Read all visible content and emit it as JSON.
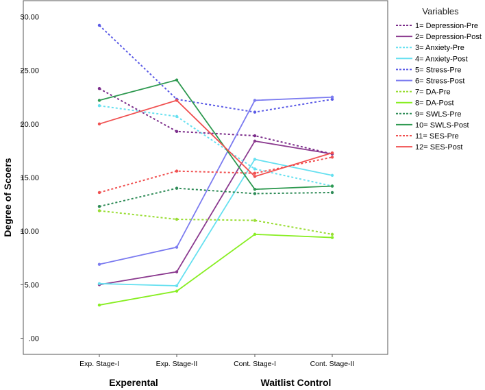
{
  "chart_data": {
    "type": "line",
    "ylabel": "Degree of Scoers",
    "categories": [
      "Exp. Stage-I",
      "Exp. Stage-II",
      "Cont. Stage-I",
      "Cont. Stage-II"
    ],
    "category_groups": [
      "Experental",
      "Waitlist Control"
    ],
    "ylim": [
      -1.5,
      31.5
    ],
    "yticks": [
      ".00",
      "5.00",
      "10.00",
      "15.00",
      "20.00",
      "25.00",
      "30.00"
    ],
    "ytick_values": [
      0,
      5,
      10,
      15,
      20,
      25,
      30
    ],
    "grid": false,
    "legend_title": "Variables",
    "legend_position": "right",
    "series": [
      {
        "name": "1= Depression-Pre",
        "values": [
          23.3,
          19.3,
          18.9,
          17.2
        ],
        "color": "#7b2c8a",
        "dashed": true
      },
      {
        "name": "2= Depression-Post",
        "values": [
          5.0,
          6.2,
          18.4,
          17.2
        ],
        "color": "#8b3a8f",
        "dashed": false
      },
      {
        "name": "3= Anxiety-Pre",
        "values": [
          21.7,
          20.7,
          15.8,
          14.2
        ],
        "color": "#66e0f0",
        "dashed": true
      },
      {
        "name": "4= Anxiety-Post",
        "values": [
          5.1,
          4.9,
          16.7,
          15.2
        ],
        "color": "#66e0f0",
        "dashed": false
      },
      {
        "name": "5= Stress-Pre",
        "values": [
          29.2,
          22.3,
          21.1,
          22.3
        ],
        "color": "#5a5ae6",
        "dashed": true
      },
      {
        "name": "6= Stress-Post",
        "values": [
          6.9,
          8.5,
          22.2,
          22.5
        ],
        "color": "#7b7bf0",
        "dashed": false
      },
      {
        "name": "7= DA-Pre",
        "values": [
          11.9,
          11.1,
          11.0,
          9.7
        ],
        "color": "#99dd33",
        "dashed": true
      },
      {
        "name": "8= DA-Post",
        "values": [
          3.1,
          4.4,
          9.7,
          9.4
        ],
        "color": "#88ee22",
        "dashed": false
      },
      {
        "name": "9= SWLS-Pre",
        "values": [
          12.3,
          14.0,
          13.5,
          13.6
        ],
        "color": "#2e8b57",
        "dashed": true
      },
      {
        "name": "10= SWLS-Post",
        "values": [
          22.2,
          24.1,
          13.9,
          14.2
        ],
        "color": "#2e9950",
        "dashed": false
      },
      {
        "name": "11= SES-Pre",
        "values": [
          13.6,
          15.6,
          15.4,
          16.9
        ],
        "color": "#f05050",
        "dashed": true
      },
      {
        "name": "12= SES-Post",
        "values": [
          20.0,
          22.2,
          15.1,
          17.3
        ],
        "color": "#f05050",
        "dashed": false
      }
    ]
  }
}
